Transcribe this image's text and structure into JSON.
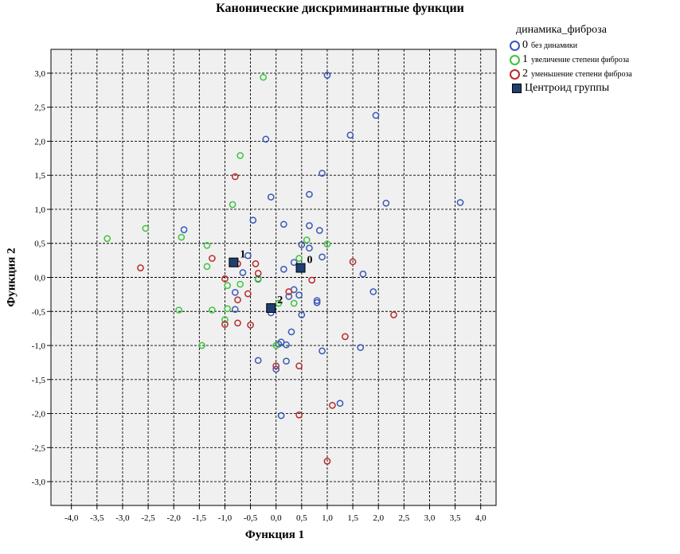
{
  "chart_data": {
    "type": "scatter",
    "title": "Канонические дискриминантные функции",
    "xlabel": "Функция 1",
    "ylabel": "Функция 2",
    "xlim": [
      -4.4,
      4.3
    ],
    "ylim": [
      -3.35,
      3.35
    ],
    "xticks": [
      "-4,0",
      "-3,5",
      "-3,0",
      "-2,5",
      "-2,0",
      "-1,5",
      "-1,0",
      "-0,5",
      "0,0",
      "0,5",
      "1,0",
      "1,5",
      "2,0",
      "2,5",
      "3,0",
      "3,5",
      "4,0"
    ],
    "xtick_values": [
      -4.0,
      -3.5,
      -3.0,
      -2.5,
      -2.0,
      -1.5,
      -1.0,
      -0.5,
      0.0,
      0.5,
      1.0,
      1.5,
      2.0,
      2.5,
      3.0,
      3.5,
      4.0
    ],
    "yticks": [
      "3,0",
      "2,5",
      "2,0",
      "1,5",
      "1,0",
      "0,5",
      "0,0",
      "-0,5",
      "-1,0",
      "-1,5",
      "-2,0",
      "-2,5",
      "-3,0"
    ],
    "ytick_values": [
      3.0,
      2.5,
      2.0,
      1.5,
      1.0,
      0.5,
      0.0,
      -0.5,
      -1.0,
      -1.5,
      -2.0,
      -2.5,
      -3.0
    ],
    "grid": true,
    "legend_position": "right",
    "legend_title": "динамика_фиброза",
    "series": [
      {
        "code": "0",
        "name": "без динамики",
        "color": "#3a58b8",
        "points": [
          [
            1.0,
            2.97
          ],
          [
            1.95,
            2.38
          ],
          [
            1.45,
            2.09
          ],
          [
            -0.2,
            2.03
          ],
          [
            0.9,
            1.53
          ],
          [
            -0.1,
            1.18
          ],
          [
            0.65,
            1.22
          ],
          [
            2.15,
            1.09
          ],
          [
            3.6,
            1.1
          ],
          [
            -0.45,
            0.84
          ],
          [
            0.15,
            0.78
          ],
          [
            0.65,
            0.76
          ],
          [
            0.85,
            0.69
          ],
          [
            -1.8,
            0.7
          ],
          [
            0.5,
            0.48
          ],
          [
            0.65,
            0.43
          ],
          [
            0.35,
            0.22
          ],
          [
            0.15,
            0.12
          ],
          [
            0.9,
            0.3
          ],
          [
            -0.55,
            0.32
          ],
          [
            -0.65,
            0.07
          ],
          [
            -0.35,
            -0.02
          ],
          [
            -0.8,
            -0.22
          ],
          [
            0.35,
            -0.18
          ],
          [
            0.25,
            -0.28
          ],
          [
            0.45,
            -0.26
          ],
          [
            0.8,
            -0.34
          ],
          [
            0.8,
            -0.37
          ],
          [
            1.7,
            0.05
          ],
          [
            1.9,
            -0.21
          ],
          [
            -0.8,
            -0.47
          ],
          [
            -0.1,
            -0.52
          ],
          [
            0.5,
            -0.55
          ],
          [
            0.3,
            -0.8
          ],
          [
            0.1,
            -0.95
          ],
          [
            0.05,
            -0.98
          ],
          [
            0.2,
            -0.99
          ],
          [
            0.9,
            -1.08
          ],
          [
            1.65,
            -1.03
          ],
          [
            -0.35,
            -1.22
          ],
          [
            0.2,
            -1.23
          ],
          [
            0.0,
            -1.35
          ],
          [
            0.1,
            -2.03
          ],
          [
            1.25,
            -1.85
          ]
        ]
      },
      {
        "code": "1",
        "name": "увеличение степени фиброза",
        "color": "#3cc43c",
        "points": [
          [
            -0.25,
            2.94
          ],
          [
            -0.7,
            1.79
          ],
          [
            -0.85,
            1.07
          ],
          [
            -2.55,
            0.72
          ],
          [
            -3.3,
            0.57
          ],
          [
            -1.85,
            0.59
          ],
          [
            -1.35,
            0.47
          ],
          [
            -1.35,
            0.16
          ],
          [
            0.6,
            0.55
          ],
          [
            1.0,
            0.49
          ],
          [
            0.45,
            0.28
          ],
          [
            -0.95,
            -0.12
          ],
          [
            -0.7,
            -0.1
          ],
          [
            -0.35,
            -0.03
          ],
          [
            0.05,
            -0.38
          ],
          [
            0.35,
            -0.38
          ],
          [
            -1.9,
            -0.48
          ],
          [
            -1.25,
            -0.48
          ],
          [
            -0.95,
            -0.46
          ],
          [
            -1.0,
            -0.62
          ],
          [
            -1.45,
            -1.0
          ],
          [
            0.0,
            -1.0
          ]
        ]
      },
      {
        "code": "2",
        "name": "уменьшение степени фиброза",
        "color": "#b82a2a",
        "points": [
          [
            -0.8,
            1.48
          ],
          [
            -2.65,
            0.14
          ],
          [
            -1.25,
            0.28
          ],
          [
            -0.75,
            0.2
          ],
          [
            -0.4,
            0.2
          ],
          [
            -0.35,
            0.06
          ],
          [
            -1.0,
            -0.02
          ],
          [
            -0.75,
            -0.33
          ],
          [
            -0.55,
            -0.24
          ],
          [
            0.25,
            -0.21
          ],
          [
            0.7,
            -0.04
          ],
          [
            1.5,
            0.23
          ],
          [
            -1.0,
            -0.69
          ],
          [
            -0.75,
            -0.67
          ],
          [
            -0.5,
            -0.7
          ],
          [
            2.3,
            -0.55
          ],
          [
            1.35,
            -0.87
          ],
          [
            0.0,
            -1.3
          ],
          [
            0.45,
            -1.3
          ],
          [
            0.45,
            -2.02
          ],
          [
            1.1,
            -1.88
          ],
          [
            1.0,
            -2.7
          ]
        ]
      }
    ],
    "centroids": {
      "name": "Центроид группы",
      "color": "#1f3f6f",
      "points": [
        {
          "label": "0",
          "x": 0.48,
          "y": 0.14
        },
        {
          "label": "1",
          "x": -0.83,
          "y": 0.22
        },
        {
          "label": "2",
          "x": -0.1,
          "y": -0.45
        }
      ]
    }
  }
}
